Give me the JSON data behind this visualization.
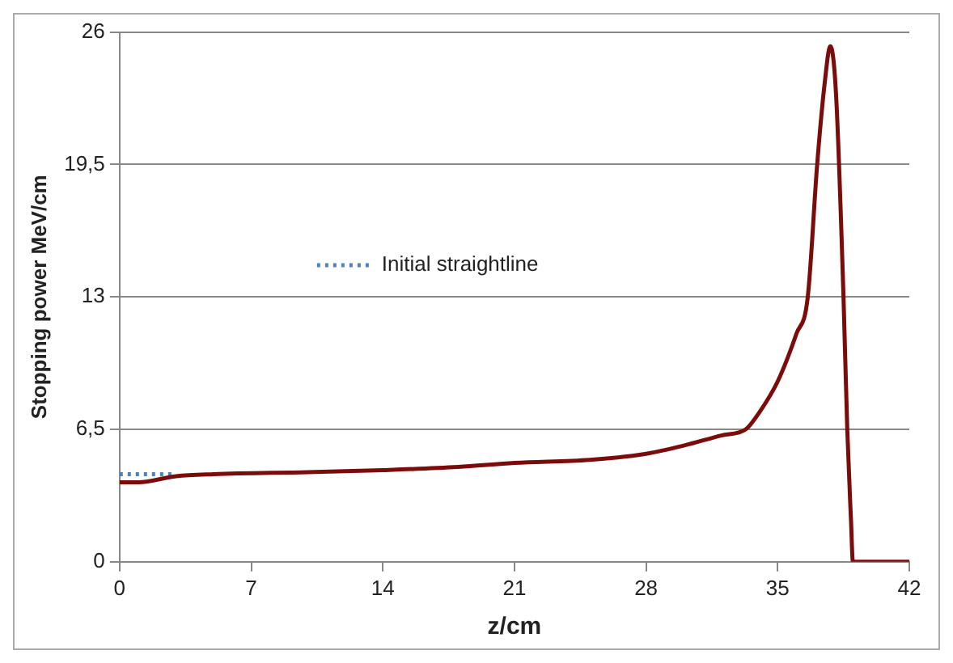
{
  "chart_data": {
    "type": "line",
    "xlabel": "z/cm",
    "ylabel": "Stopping power MeV/cm",
    "xlim": [
      0,
      42
    ],
    "xticks": [
      0,
      7,
      14,
      21,
      28,
      35,
      42
    ],
    "ylim": [
      0,
      26
    ],
    "yticks": [
      0,
      {
        "value": 6.5,
        "label": "6,5"
      },
      13,
      {
        "value": 19.5,
        "label": "19,5"
      },
      26
    ],
    "grid": "y",
    "legend": "left",
    "marker": "none",
    "series": [
      {
        "color": "#7b0c0c",
        "line_style": "solid",
        "x": [
          0,
          1,
          3,
          5,
          10,
          14,
          18,
          21,
          25,
          28,
          30,
          32,
          33.3,
          34,
          35,
          36,
          36.6,
          37.1,
          37.5,
          37.8,
          38.1,
          38.5,
          38.7,
          38.9,
          39,
          42
        ],
        "values": [
          3.9,
          3.9,
          4.2,
          4.3,
          4.4,
          4.5,
          4.65,
          4.85,
          5.0,
          5.3,
          5.7,
          6.2,
          6.5,
          7.3,
          8.85,
          11.2,
          13,
          19.5,
          23.5,
          25.3,
          23,
          13,
          6.5,
          2,
          0,
          0
        ]
      },
      {
        "name": "Initial straightline",
        "color": "#4f81bd",
        "line_style": "dotted",
        "x": [
          0,
          3
        ],
        "values": [
          4.3,
          4.3
        ]
      }
    ]
  }
}
